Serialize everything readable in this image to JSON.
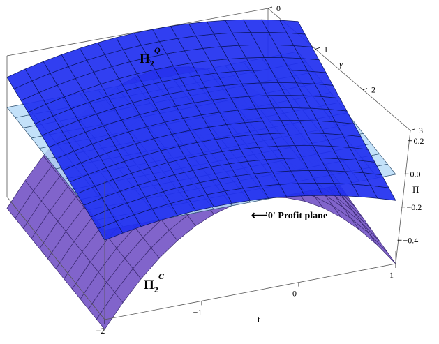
{
  "chart_data": {
    "type": "surface3d",
    "axes": {
      "t": {
        "label": "t",
        "range": [
          -2,
          1
        ],
        "ticks": [
          "-2",
          "-1",
          "0",
          "1"
        ]
      },
      "gamma": {
        "label": "γ",
        "range": [
          0,
          3
        ],
        "ticks": [
          "0",
          "1",
          "2",
          "3"
        ]
      },
      "pi": {
        "label": "Π",
        "range": [
          -0.5,
          0.3
        ],
        "ticks": [
          "0.2",
          "0.0",
          "-0.2",
          "-0.4"
        ]
      }
    },
    "surfaces": [
      {
        "name_main": "Π",
        "name_sub": "2",
        "name_sup": "Q",
        "color": "#1f2ff0",
        "samples": [
          {
            "t": -2,
            "gamma": 0,
            "pi": 0.12
          },
          {
            "t": -0.5,
            "gamma": 0,
            "pi": 0.28
          },
          {
            "t": 1,
            "gamma": 0,
            "pi": 0.24
          },
          {
            "t": -2,
            "gamma": 3,
            "pi": -0.05
          },
          {
            "t": 1,
            "gamma": 3,
            "pi": -0.25
          }
        ]
      },
      {
        "name_main": "Π",
        "name_sub": "2",
        "name_sup": "C",
        "color": "#7a5cc8",
        "samples": [
          {
            "t": -2,
            "gamma": 0,
            "pi": -0.5
          },
          {
            "t": -0.5,
            "gamma": 0,
            "pi": 0.05
          },
          {
            "t": 1,
            "gamma": 0,
            "pi": -0.05
          },
          {
            "t": -2,
            "gamma": 3,
            "pi": -0.35
          },
          {
            "t": 1,
            "gamma": 3,
            "pi": -0.3
          }
        ]
      },
      {
        "name": "'0' Profit plane",
        "color": "#b8dcf8",
        "samples": [
          {
            "t": -2,
            "gamma": 0,
            "pi": 0.0
          },
          {
            "t": 1,
            "gamma": 3,
            "pi": 0.0
          }
        ]
      }
    ],
    "annotations": {
      "profit_plane": "'0' Profit plane",
      "arrow": "⟵"
    }
  }
}
